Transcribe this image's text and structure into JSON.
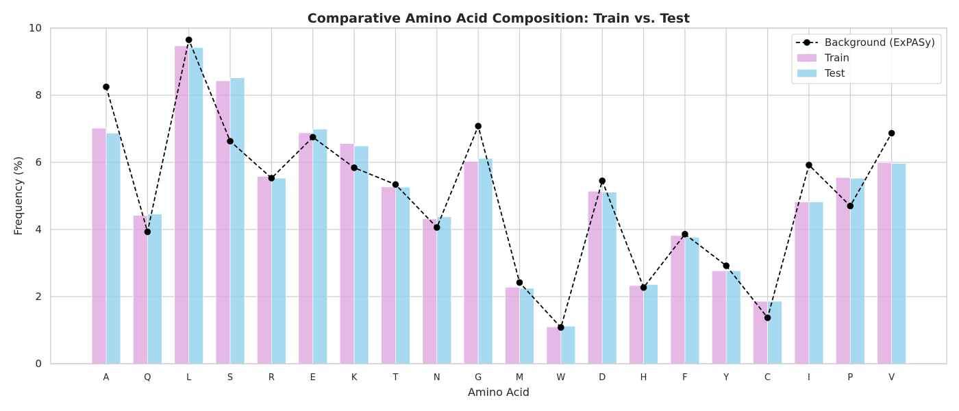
{
  "chart_data": {
    "type": "bar",
    "title": "Comparative Amino Acid Composition: Train vs. Test",
    "xlabel": "Amino Acid",
    "ylabel": "Frequency (%)",
    "ylim": [
      0,
      10
    ],
    "yticks": [
      0,
      2,
      4,
      6,
      8,
      10
    ],
    "grid": true,
    "legend_position": "top-right",
    "categories": [
      "A",
      "Q",
      "L",
      "S",
      "R",
      "E",
      "K",
      "T",
      "N",
      "G",
      "M",
      "W",
      "D",
      "H",
      "F",
      "Y",
      "C",
      "I",
      "P",
      "V"
    ],
    "series": [
      {
        "name": "Train",
        "kind": "bar",
        "color": "#dda0dd",
        "values": [
          7.02,
          4.42,
          9.47,
          8.43,
          5.58,
          6.88,
          6.56,
          5.27,
          4.32,
          6.03,
          2.28,
          1.1,
          5.14,
          2.33,
          3.82,
          2.77,
          1.86,
          4.82,
          5.55,
          5.99
        ]
      },
      {
        "name": "Test",
        "kind": "bar",
        "color": "#87ceeb",
        "values": [
          6.87,
          4.46,
          9.42,
          8.52,
          5.53,
          6.99,
          6.49,
          5.26,
          4.38,
          6.12,
          2.25,
          1.12,
          5.11,
          2.36,
          3.77,
          2.77,
          1.86,
          4.82,
          5.53,
          5.97
        ]
      },
      {
        "name": "Background (ExPASy)",
        "kind": "line",
        "color": "#000000",
        "values": [
          8.25,
          3.93,
          9.65,
          6.63,
          5.53,
          6.75,
          5.84,
          5.34,
          4.06,
          7.08,
          2.42,
          1.08,
          5.45,
          2.27,
          3.86,
          2.92,
          1.37,
          5.92,
          4.7,
          6.87
        ]
      }
    ]
  }
}
